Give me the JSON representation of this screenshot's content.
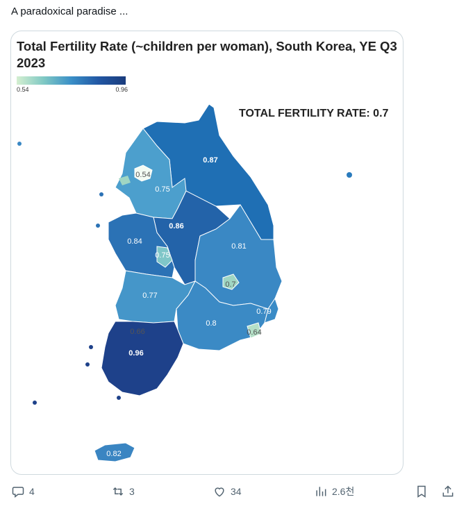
{
  "post": {
    "text": "A paradoxical paradise ..."
  },
  "chart_data": {
    "type": "choropleth",
    "title": "Total Fertility Rate (~children per woman), South Korea, YE Q3 2023",
    "legend": {
      "min": "0.54",
      "max": "0.96"
    },
    "annotation": "TOTAL FERTILITY RATE: 0.7",
    "regions": [
      {
        "value": "0.87",
        "color": "#1f6fb4"
      },
      {
        "value": "0.54",
        "color": "#f3fbf3"
      },
      {
        "value": "0.75",
        "color": "#4c9fcd"
      },
      {
        "value": "0.86",
        "color": "#2363a9"
      },
      {
        "value": "0.84",
        "color": "#2b72b5"
      },
      {
        "value": "0.75",
        "color": "#7fc6c8"
      },
      {
        "value": "0.81",
        "color": "#3a88c4"
      },
      {
        "value": "0.7",
        "color": "#9fd6c3"
      },
      {
        "value": "0.77",
        "color": "#4596c9"
      },
      {
        "value": "0.79",
        "color": "#3a8bc6"
      },
      {
        "value": "0.8",
        "color": "#3b8ac5"
      },
      {
        "value": "0.66",
        "color": "#6ebcc9"
      },
      {
        "value": "0.64",
        "color": "#b4e0c7"
      },
      {
        "value": "0.96",
        "color": "#1e418a"
      },
      {
        "value": "0.82",
        "color": "#3a85c2"
      }
    ]
  },
  "actions": {
    "reply": "4",
    "repost": "3",
    "like": "34",
    "views": "2.6천"
  }
}
